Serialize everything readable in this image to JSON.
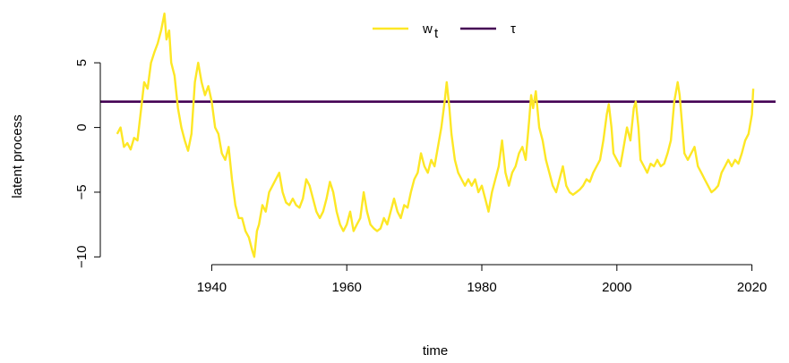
{
  "chart_data": {
    "type": "line",
    "title": "",
    "xlabel": "time",
    "ylabel": "latent process",
    "xlim": [
      1923.5,
      2023.5
    ],
    "ylim": [
      -10.6,
      9.3
    ],
    "x_ticks": [
      1940,
      1960,
      1980,
      2000,
      2020
    ],
    "y_ticks": [
      -10,
      -5,
      0,
      5
    ],
    "y_tick_labels": [
      "−10",
      "−5",
      "0",
      "5"
    ],
    "grid": false,
    "legend": {
      "placement": "top-center",
      "entries": [
        {
          "label": "w",
          "subscript": "t",
          "color": "#FDE725"
        },
        {
          "label": "τ",
          "subscript": "",
          "color": "#440154"
        }
      ]
    },
    "series": [
      {
        "name": "w_t",
        "color": "#FDE725",
        "points": [
          [
            1926.0,
            -0.5
          ],
          [
            1926.5,
            0.0
          ],
          [
            1927.0,
            -1.5
          ],
          [
            1927.5,
            -1.2
          ],
          [
            1928.0,
            -1.7
          ],
          [
            1928.5,
            -0.8
          ],
          [
            1929.0,
            -1.0
          ],
          [
            1929.5,
            1.2
          ],
          [
            1930.0,
            3.5
          ],
          [
            1930.5,
            3.0
          ],
          [
            1931.0,
            5.0
          ],
          [
            1931.5,
            5.8
          ],
          [
            1932.0,
            6.5
          ],
          [
            1932.5,
            7.5
          ],
          [
            1933.0,
            8.8
          ],
          [
            1933.3,
            6.8
          ],
          [
            1933.7,
            7.5
          ],
          [
            1934.0,
            5.0
          ],
          [
            1934.5,
            4.0
          ],
          [
            1935.0,
            1.5
          ],
          [
            1935.5,
            0.0
          ],
          [
            1936.0,
            -1.0
          ],
          [
            1936.5,
            -1.8
          ],
          [
            1937.0,
            -0.5
          ],
          [
            1937.5,
            3.5
          ],
          [
            1938.0,
            5.0
          ],
          [
            1938.5,
            3.5
          ],
          [
            1939.0,
            2.5
          ],
          [
            1939.5,
            3.2
          ],
          [
            1940.0,
            2.0
          ],
          [
            1940.5,
            0.0
          ],
          [
            1941.0,
            -0.5
          ],
          [
            1941.5,
            -2.0
          ],
          [
            1942.0,
            -2.5
          ],
          [
            1942.5,
            -1.5
          ],
          [
            1943.0,
            -4.0
          ],
          [
            1943.5,
            -6.0
          ],
          [
            1944.0,
            -7.0
          ],
          [
            1944.5,
            -7.0
          ],
          [
            1945.0,
            -8.0
          ],
          [
            1945.5,
            -8.5
          ],
          [
            1946.0,
            -9.5
          ],
          [
            1946.3,
            -10.0
          ],
          [
            1946.7,
            -8.0
          ],
          [
            1947.0,
            -7.5
          ],
          [
            1947.5,
            -6.0
          ],
          [
            1948.0,
            -6.5
          ],
          [
            1948.5,
            -5.0
          ],
          [
            1949.0,
            -4.5
          ],
          [
            1949.5,
            -4.0
          ],
          [
            1950.0,
            -3.5
          ],
          [
            1950.5,
            -5.0
          ],
          [
            1951.0,
            -5.8
          ],
          [
            1951.5,
            -6.0
          ],
          [
            1952.0,
            -5.5
          ],
          [
            1952.5,
            -6.0
          ],
          [
            1953.0,
            -6.2
          ],
          [
            1953.5,
            -5.5
          ],
          [
            1954.0,
            -4.0
          ],
          [
            1954.5,
            -4.5
          ],
          [
            1955.0,
            -5.5
          ],
          [
            1955.5,
            -6.5
          ],
          [
            1956.0,
            -7.0
          ],
          [
            1956.5,
            -6.5
          ],
          [
            1957.0,
            -5.5
          ],
          [
            1957.5,
            -4.2
          ],
          [
            1958.0,
            -5.0
          ],
          [
            1958.5,
            -6.5
          ],
          [
            1959.0,
            -7.5
          ],
          [
            1959.5,
            -8.0
          ],
          [
            1960.0,
            -7.5
          ],
          [
            1960.5,
            -6.5
          ],
          [
            1961.0,
            -8.0
          ],
          [
            1961.5,
            -7.5
          ],
          [
            1962.0,
            -7.0
          ],
          [
            1962.5,
            -5.0
          ],
          [
            1963.0,
            -6.5
          ],
          [
            1963.5,
            -7.5
          ],
          [
            1964.0,
            -7.8
          ],
          [
            1964.5,
            -8.0
          ],
          [
            1965.0,
            -7.8
          ],
          [
            1965.5,
            -7.0
          ],
          [
            1966.0,
            -7.5
          ],
          [
            1966.5,
            -6.5
          ],
          [
            1967.0,
            -5.5
          ],
          [
            1967.5,
            -6.5
          ],
          [
            1968.0,
            -7.0
          ],
          [
            1968.5,
            -6.0
          ],
          [
            1969.0,
            -6.2
          ],
          [
            1969.5,
            -5.0
          ],
          [
            1970.0,
            -4.0
          ],
          [
            1970.5,
            -3.5
          ],
          [
            1971.0,
            -2.0
          ],
          [
            1971.5,
            -3.0
          ],
          [
            1972.0,
            -3.5
          ],
          [
            1972.5,
            -2.5
          ],
          [
            1973.0,
            -3.0
          ],
          [
            1973.5,
            -1.5
          ],
          [
            1974.0,
            0.0
          ],
          [
            1974.5,
            2.0
          ],
          [
            1974.8,
            3.5
          ],
          [
            1975.2,
            1.5
          ],
          [
            1975.5,
            -0.5
          ],
          [
            1976.0,
            -2.5
          ],
          [
            1976.5,
            -3.5
          ],
          [
            1977.0,
            -4.0
          ],
          [
            1977.5,
            -4.5
          ],
          [
            1978.0,
            -4.0
          ],
          [
            1978.5,
            -4.5
          ],
          [
            1979.0,
            -4.0
          ],
          [
            1979.5,
            -5.0
          ],
          [
            1980.0,
            -4.5
          ],
          [
            1980.5,
            -5.5
          ],
          [
            1981.0,
            -6.5
          ],
          [
            1981.5,
            -5.0
          ],
          [
            1982.0,
            -4.0
          ],
          [
            1982.5,
            -3.0
          ],
          [
            1983.0,
            -1.0
          ],
          [
            1983.5,
            -3.5
          ],
          [
            1984.0,
            -4.5
          ],
          [
            1984.5,
            -3.5
          ],
          [
            1985.0,
            -3.0
          ],
          [
            1985.5,
            -2.0
          ],
          [
            1986.0,
            -1.5
          ],
          [
            1986.5,
            -2.5
          ],
          [
            1987.0,
            0.5
          ],
          [
            1987.3,
            2.5
          ],
          [
            1987.6,
            1.5
          ],
          [
            1988.0,
            2.8
          ],
          [
            1988.5,
            0.0
          ],
          [
            1989.0,
            -1.0
          ],
          [
            1989.5,
            -2.5
          ],
          [
            1990.0,
            -3.5
          ],
          [
            1990.5,
            -4.5
          ],
          [
            1991.0,
            -5.0
          ],
          [
            1991.5,
            -4.0
          ],
          [
            1992.0,
            -3.0
          ],
          [
            1992.5,
            -4.5
          ],
          [
            1993.0,
            -5.0
          ],
          [
            1993.5,
            -5.2
          ],
          [
            1994.0,
            -5.0
          ],
          [
            1994.5,
            -4.8
          ],
          [
            1995.0,
            -4.5
          ],
          [
            1995.5,
            -4.0
          ],
          [
            1996.0,
            -4.2
          ],
          [
            1996.5,
            -3.5
          ],
          [
            1997.0,
            -3.0
          ],
          [
            1997.5,
            -2.5
          ],
          [
            1998.0,
            -1.0
          ],
          [
            1998.5,
            1.0
          ],
          [
            1998.8,
            1.8
          ],
          [
            1999.2,
            0.0
          ],
          [
            1999.5,
            -2.0
          ],
          [
            2000.0,
            -2.5
          ],
          [
            2000.5,
            -3.0
          ],
          [
            2001.0,
            -1.5
          ],
          [
            2001.5,
            0.0
          ],
          [
            2002.0,
            -1.0
          ],
          [
            2002.5,
            1.5
          ],
          [
            2002.8,
            2.0
          ],
          [
            2003.2,
            0.0
          ],
          [
            2003.5,
            -2.5
          ],
          [
            2004.0,
            -3.0
          ],
          [
            2004.5,
            -3.5
          ],
          [
            2005.0,
            -2.8
          ],
          [
            2005.5,
            -3.0
          ],
          [
            2006.0,
            -2.5
          ],
          [
            2006.5,
            -3.0
          ],
          [
            2007.0,
            -2.8
          ],
          [
            2007.5,
            -2.0
          ],
          [
            2008.0,
            -1.0
          ],
          [
            2008.5,
            2.0
          ],
          [
            2009.0,
            3.5
          ],
          [
            2009.3,
            2.5
          ],
          [
            2009.7,
            0.0
          ],
          [
            2010.0,
            -2.0
          ],
          [
            2010.5,
            -2.5
          ],
          [
            2011.0,
            -2.0
          ],
          [
            2011.5,
            -1.5
          ],
          [
            2012.0,
            -3.0
          ],
          [
            2012.5,
            -3.5
          ],
          [
            2013.0,
            -4.0
          ],
          [
            2013.5,
            -4.5
          ],
          [
            2014.0,
            -5.0
          ],
          [
            2014.5,
            -4.8
          ],
          [
            2015.0,
            -4.5
          ],
          [
            2015.5,
            -3.5
          ],
          [
            2016.0,
            -3.0
          ],
          [
            2016.5,
            -2.5
          ],
          [
            2017.0,
            -3.0
          ],
          [
            2017.5,
            -2.5
          ],
          [
            2018.0,
            -2.8
          ],
          [
            2018.5,
            -2.0
          ],
          [
            2019.0,
            -1.0
          ],
          [
            2019.5,
            -0.5
          ],
          [
            2020.0,
            1.0
          ],
          [
            2020.2,
            3.0
          ]
        ]
      },
      {
        "name": "τ",
        "color": "#440154",
        "value": 2.0,
        "x_extent": "full"
      }
    ]
  }
}
